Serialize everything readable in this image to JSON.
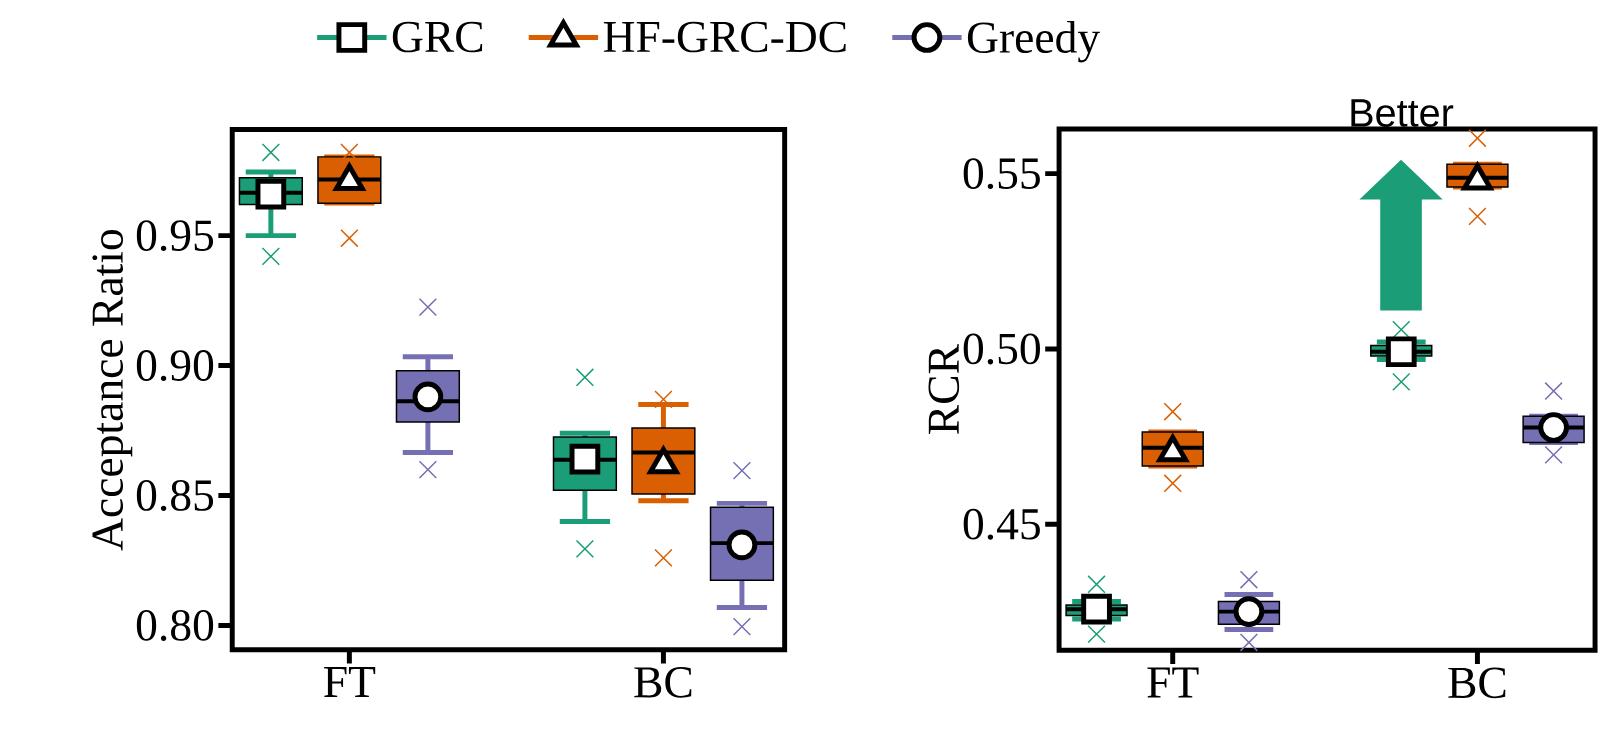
{
  "chart_data": [
    {
      "type": "box",
      "ylabel": "Acceptance Ratio",
      "categories": [
        "FT",
        "BC"
      ],
      "ylim": [
        0.7907,
        0.9908
      ],
      "yticks": [
        {
          "value": 0.8,
          "label": "0.80"
        },
        0.85,
        {
          "value": 0.9,
          "label": "0.90"
        },
        0.95
      ],
      "legend": "top",
      "series": [
        {
          "name": "GRC",
          "color": "#1b9e77",
          "marker": "square",
          "boxes": [
            {
              "low": 0.95,
              "q1": 0.962,
              "median": 0.9665,
              "q3": 0.9723,
              "high": 0.9745,
              "mean": 0.966,
              "outliers": [
                0.982,
                0.942
              ]
            },
            {
              "low": 0.84,
              "q1": 0.852,
              "median": 0.8638,
              "q3": 0.8725,
              "high": 0.874,
              "mean": 0.864,
              "outliers": [
                0.8955,
                0.8295
              ]
            }
          ]
        },
        {
          "name": "HF-GRC-DC",
          "color": "#d95f02",
          "marker": "triangle",
          "boxes": [
            {
              "low": 0.9625,
              "q1": 0.9625,
              "median": 0.9716,
              "q3": 0.9803,
              "high": 0.9803,
              "mean": 0.971,
              "outliers": [
                0.982,
                0.949
              ]
            },
            {
              "low": 0.848,
              "q1": 0.8506,
              "median": 0.8666,
              "q3": 0.876,
              "high": 0.885,
              "mean": 0.862,
              "outliers": [
                0.887,
                0.826
              ]
            }
          ]
        },
        {
          "name": "Greedy",
          "color": "#7570b3",
          "marker": "circle",
          "boxes": [
            {
              "low": 0.8666,
              "q1": 0.8783,
              "median": 0.8863,
              "q3": 0.898,
              "high": 0.9034,
              "mean": 0.888,
              "outliers": [
                0.9225,
                0.86
              ]
            },
            {
              "low": 0.8069,
              "q1": 0.8174,
              "median": 0.8317,
              "q3": 0.8455,
              "high": 0.847,
              "mean": 0.831,
              "outliers": [
                0.8596,
                0.7996
              ]
            }
          ]
        }
      ]
    },
    {
      "type": "box",
      "ylabel": "RCR",
      "categories": [
        "FT",
        "BC"
      ],
      "ylim": [
        0.4141,
        0.5627
      ],
      "yticks": [
        0.45,
        {
          "value": 0.5,
          "label": "0.50"
        },
        0.55
      ],
      "annotations": [
        "Better"
      ],
      "series": [
        {
          "color": "#1b9e77",
          "marker": "square",
          "boxes": [
            {
              "low": 0.423,
              "q1": 0.424,
              "median": 0.4258,
              "q3": 0.427,
              "high": 0.428,
              "mean": 0.4258,
              "outliers": [
                0.4329,
                0.4187
              ]
            },
            {
              "low": 0.497,
              "q1": 0.498,
              "median": 0.4992,
              "q3": 0.501,
              "high": 0.502,
              "mean": 0.4992,
              "outliers": [
                0.5055,
                0.4906
              ]
            }
          ]
        },
        {
          "color": "#d95f02",
          "marker": "triangle",
          "boxes": [
            {
              "low": 0.4666,
              "q1": 0.4666,
              "median": 0.4718,
              "q3": 0.4763,
              "high": 0.4763,
              "mean": 0.4705,
              "outliers": [
                0.4821,
                0.4617
              ]
            },
            {
              "low": 0.5462,
              "q1": 0.5462,
              "median": 0.5488,
              "q3": 0.5527,
              "high": 0.5527,
              "mean": 0.548,
              "outliers": [
                0.5601,
                0.5378
              ]
            }
          ]
        },
        {
          "color": "#7570b3",
          "marker": "circle",
          "boxes": [
            {
              "low": 0.42,
              "q1": 0.4215,
              "median": 0.4251,
              "q3": 0.428,
              "high": 0.43,
              "mean": 0.4251,
              "outliers": [
                0.4342,
                0.4163
              ]
            },
            {
              "low": 0.4733,
              "q1": 0.4733,
              "median": 0.4776,
              "q3": 0.4808,
              "high": 0.4808,
              "mean": 0.4776,
              "outliers": [
                0.488,
                0.4698
              ]
            }
          ]
        }
      ]
    }
  ]
}
